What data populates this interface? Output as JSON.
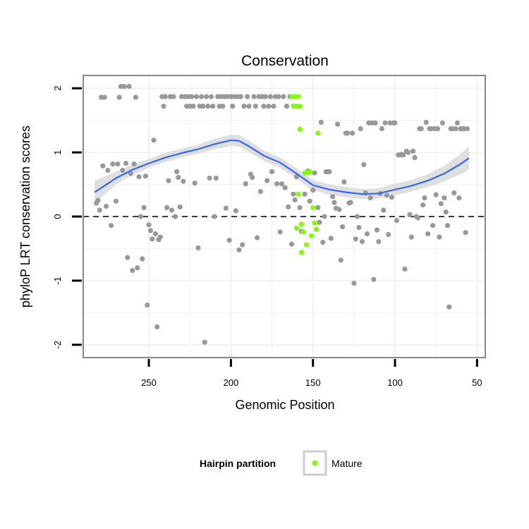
{
  "chart_data": {
    "type": "scatter",
    "title": "Conservation",
    "xlabel": "Genomic Position",
    "ylabel": "phyloP LRT conservation scores",
    "x_reversed": true,
    "xlim": [
      290,
      45
    ],
    "ylim": [
      -2.2,
      2.2
    ],
    "x_ticks": [
      250,
      200,
      150,
      100,
      50
    ],
    "x_tick_labels": [
      "250",
      "200",
      "150",
      "100",
      "50"
    ],
    "y_ticks": [
      2,
      1,
      0,
      -1,
      -2
    ],
    "y_tick_labels": [
      "2",
      "1",
      "0",
      "-1",
      "-2"
    ],
    "grid": true,
    "reference_line": {
      "y": 0,
      "style": "dashed"
    },
    "legend": {
      "title": "Hairpin partition",
      "placement": "bottom",
      "entries": [
        {
          "label": "Mature",
          "color": "#7fff00"
        }
      ]
    },
    "colors": {
      "other": "#999999",
      "mature": "#7fff00",
      "smooth": "#3366ff",
      "ribbon": "#d9d9d9",
      "panel_border": "#888888",
      "grid": "#f2f2f2"
    },
    "series": [
      {
        "key": "other",
        "points": [
          [
            282,
            0.21
          ],
          [
            281,
            0.25
          ],
          [
            280,
            0.1
          ],
          [
            279,
            1.86
          ],
          [
            278,
            0.79
          ],
          [
            277,
            1.86
          ],
          [
            276,
            0.16
          ],
          [
            275,
            0.72
          ],
          [
            273,
            -0.14
          ],
          [
            272,
            0.82
          ],
          [
            270,
            0.24
          ],
          [
            269,
            0.82
          ],
          [
            268,
            1.86
          ],
          [
            267,
            2.03
          ],
          [
            266,
            0.72
          ],
          [
            265,
            2.03
          ],
          [
            264,
            0.83
          ],
          [
            263,
            -0.64
          ],
          [
            262,
            2.03
          ],
          [
            261,
            0.67
          ],
          [
            260,
            -0.84
          ],
          [
            259,
            0.82
          ],
          [
            258,
            1.86
          ],
          [
            257,
            -0.8
          ],
          [
            256,
            0.62
          ],
          [
            255,
            0.0
          ],
          [
            254,
            -0.66
          ],
          [
            253,
            0.14
          ],
          [
            252,
            0.63
          ],
          [
            251,
            -1.38
          ],
          [
            250,
            -0.13
          ],
          [
            249,
            -0.22
          ],
          [
            248,
            -0.35
          ],
          [
            247,
            1.19
          ],
          [
            246,
            -0.27
          ],
          [
            245,
            -1.72
          ],
          [
            244,
            -0.36
          ],
          [
            243,
            -0.32
          ],
          [
            242,
            1.87
          ],
          [
            241,
            1.72
          ],
          [
            240,
            1.87
          ],
          [
            239,
            0.14
          ],
          [
            238,
            0.56
          ],
          [
            237,
            1.87
          ],
          [
            236,
            0.1
          ],
          [
            235,
            1.87
          ],
          [
            234,
            0.0
          ],
          [
            233,
            0.7
          ],
          [
            232,
            0.61
          ],
          [
            231,
            0.15
          ],
          [
            230,
            1.87
          ],
          [
            229,
            0.55
          ],
          [
            228,
            1.87
          ],
          [
            227,
            1.72
          ],
          [
            226,
            1.87
          ],
          [
            225,
            1.72
          ],
          [
            224,
            1.87
          ],
          [
            223,
            1.72
          ],
          [
            222,
            0.52
          ],
          [
            221,
            1.87
          ],
          [
            220,
            -0.49
          ],
          [
            219,
            1.72
          ],
          [
            218,
            1.87
          ],
          [
            217,
            1.72
          ],
          [
            216,
            -1.96
          ],
          [
            215,
            1.87
          ],
          [
            214,
            1.72
          ],
          [
            213,
            0.6
          ],
          [
            212,
            1.87
          ],
          [
            211,
            1.72
          ],
          [
            210,
            0.0
          ],
          [
            209,
            0.6
          ],
          [
            208,
            1.87
          ],
          [
            207,
            1.72
          ],
          [
            206,
            1.87
          ],
          [
            205,
            1.72
          ],
          [
            204,
            1.87
          ],
          [
            203,
            0.13
          ],
          [
            202,
            1.87
          ],
          [
            201,
            -0.37
          ],
          [
            200,
            1.87
          ],
          [
            199,
            1.72
          ],
          [
            198,
            1.87
          ],
          [
            197,
            0.09
          ],
          [
            196,
            1.87
          ],
          [
            195,
            -0.52
          ],
          [
            194,
            1.87
          ],
          [
            193,
            -0.44
          ],
          [
            192,
            1.72
          ],
          [
            191,
            0.51
          ],
          [
            190,
            1.87
          ],
          [
            189,
            1.72
          ],
          [
            188,
            0.66
          ],
          [
            187,
            0.61
          ],
          [
            186,
            1.87
          ],
          [
            185,
            1.72
          ],
          [
            184,
            -0.33
          ],
          [
            183,
            1.87
          ],
          [
            182,
            0.39
          ],
          [
            181,
            1.87
          ],
          [
            180,
            1.72
          ],
          [
            179,
            1.87
          ],
          [
            178,
            0.56
          ],
          [
            177,
            1.72
          ],
          [
            176,
            1.87
          ],
          [
            175,
            0.7
          ],
          [
            174,
            1.72
          ],
          [
            173,
            1.87
          ],
          [
            172,
            0.51
          ],
          [
            171,
            1.87
          ],
          [
            170,
            -0.24
          ],
          [
            169,
            0.51
          ],
          [
            168,
            1.87
          ],
          [
            167,
            0.45
          ],
          [
            166,
            1.72
          ],
          [
            165,
            0.15
          ],
          [
            164,
            1.87
          ],
          [
            163,
            -0.43
          ],
          [
            162,
            0.35
          ],
          [
            161,
            0.26
          ],
          [
            160,
            0.62
          ],
          [
            158,
            0.14
          ],
          [
            157,
            -0.23
          ],
          [
            155,
            0.35
          ],
          [
            153,
            0.71
          ],
          [
            152,
            0.24
          ],
          [
            150,
            0.41
          ],
          [
            149,
            0.68
          ],
          [
            148,
            -0.2
          ],
          [
            147,
            0.14
          ],
          [
            146,
            -0.09
          ],
          [
            145,
            1.47
          ],
          [
            144,
            -0.4
          ],
          [
            143,
            0.0
          ],
          [
            142,
            0.7
          ],
          [
            141,
            0.7
          ],
          [
            140,
            0.7
          ],
          [
            139,
            -0.34
          ],
          [
            138,
            0.31
          ],
          [
            137,
            0.22
          ],
          [
            136,
            0.13
          ],
          [
            135,
            1.44
          ],
          [
            134,
            0.11
          ],
          [
            133,
            -0.68
          ],
          [
            132,
            -0.16
          ],
          [
            131,
            0.54
          ],
          [
            130,
            1.3
          ],
          [
            129,
            1.3
          ],
          [
            128,
            0.21
          ],
          [
            127,
            0.22
          ],
          [
            126,
            1.3
          ],
          [
            125,
            -1.04
          ],
          [
            124,
            -0.35
          ],
          [
            123,
            0.0
          ],
          [
            122,
            -0.17
          ],
          [
            121,
            1.37
          ],
          [
            120,
            -0.39
          ],
          [
            119,
            0.81
          ],
          [
            118,
            0.37
          ],
          [
            117,
            -0.27
          ],
          [
            116,
            1.46
          ],
          [
            115,
            0.29
          ],
          [
            114,
            1.46
          ],
          [
            113,
            -0.98
          ],
          [
            112,
            1.46
          ],
          [
            111,
            -0.21
          ],
          [
            110,
            -0.39
          ],
          [
            109,
            0.36
          ],
          [
            108,
            1.37
          ],
          [
            107,
            0.1
          ],
          [
            106,
            1.46
          ],
          [
            105,
            0.33
          ],
          [
            104,
            -0.28
          ],
          [
            103,
            1.46
          ],
          [
            102,
            0.3
          ],
          [
            101,
            1.46
          ],
          [
            100,
            1.46
          ],
          [
            99,
            -0.06
          ],
          [
            98,
            0.96
          ],
          [
            97,
            0.96
          ],
          [
            96,
            0.97
          ],
          [
            95,
            0.96
          ],
          [
            94,
            -0.82
          ],
          [
            93,
            1.02
          ],
          [
            92,
            1.0
          ],
          [
            91,
            0.03
          ],
          [
            90,
            -0.32
          ],
          [
            89,
            1.02
          ],
          [
            88,
            0.92
          ],
          [
            87,
            0.0
          ],
          [
            86,
            -0.02
          ],
          [
            85,
            1.37
          ],
          [
            84,
            1.37
          ],
          [
            83,
            0.18
          ],
          [
            82,
            0.29
          ],
          [
            81,
            1.47
          ],
          [
            80,
            -0.27
          ],
          [
            79,
            1.37
          ],
          [
            78,
            1.37
          ],
          [
            77,
            -0.14
          ],
          [
            76,
            1.37
          ],
          [
            75,
            0.34
          ],
          [
            74,
            1.37
          ],
          [
            73,
            -0.32
          ],
          [
            72,
            0.2
          ],
          [
            71,
            1.46
          ],
          [
            70,
            0.29
          ],
          [
            69,
            0.07
          ],
          [
            68,
            -0.14
          ],
          [
            67,
            -1.41
          ],
          [
            66,
            1.37
          ],
          [
            65,
            1.37
          ],
          [
            64,
            0.37
          ],
          [
            63,
            1.37
          ],
          [
            62,
            1.46
          ],
          [
            61,
            0.29
          ],
          [
            60,
            1.37
          ],
          [
            59,
            1.37
          ],
          [
            58,
            1.37
          ],
          [
            57,
            -0.25
          ],
          [
            56,
            1.37
          ]
        ]
      },
      {
        "key": "mature",
        "name": "Mature",
        "points": [
          [
            163,
            1.87
          ],
          [
            162,
            1.72
          ],
          [
            161,
            1.87
          ],
          [
            160,
            1.72
          ],
          [
            159,
            1.87
          ],
          [
            158,
            1.72
          ],
          [
            159,
            0.35
          ],
          [
            158,
            1.36
          ],
          [
            157,
            -0.12
          ],
          [
            157,
            -0.56
          ],
          [
            156,
            -0.24
          ],
          [
            155,
            0.68
          ],
          [
            154,
            -0.44
          ],
          [
            153,
            0.69
          ],
          [
            152,
            0.7
          ],
          [
            151,
            -0.3
          ],
          [
            150,
            0.14
          ],
          [
            149,
            -0.1
          ],
          [
            148,
            -0.2
          ],
          [
            147,
            1.3
          ],
          [
            160,
            -0.18
          ]
        ]
      }
    ],
    "smooth_line": {
      "x": [
        283,
        270,
        260,
        250,
        240,
        230,
        220,
        210,
        200,
        195,
        190,
        180,
        170,
        160,
        150,
        140,
        130,
        120,
        110,
        100,
        90,
        80,
        70,
        60,
        55
      ],
      "y": [
        0.38,
        0.6,
        0.73,
        0.83,
        0.92,
        0.99,
        1.05,
        1.13,
        1.19,
        1.18,
        1.11,
        0.95,
        0.84,
        0.67,
        0.49,
        0.42,
        0.38,
        0.35,
        0.36,
        0.42,
        0.48,
        0.56,
        0.67,
        0.82,
        0.91
      ],
      "ci_low": [
        0.2,
        0.5,
        0.65,
        0.76,
        0.85,
        0.92,
        0.98,
        1.05,
        1.1,
        1.09,
        1.02,
        0.87,
        0.76,
        0.59,
        0.41,
        0.34,
        0.3,
        0.27,
        0.28,
        0.33,
        0.39,
        0.46,
        0.55,
        0.66,
        0.73
      ],
      "ci_high": [
        0.56,
        0.7,
        0.81,
        0.9,
        0.99,
        1.06,
        1.12,
        1.21,
        1.28,
        1.27,
        1.2,
        1.03,
        0.92,
        0.75,
        0.57,
        0.5,
        0.46,
        0.43,
        0.44,
        0.51,
        0.57,
        0.66,
        0.79,
        0.98,
        1.09
      ]
    }
  }
}
